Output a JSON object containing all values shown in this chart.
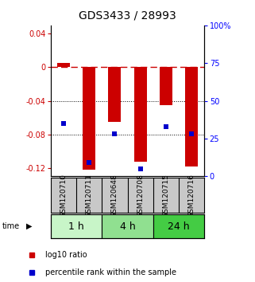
{
  "title": "GDS3433 / 28993",
  "samples": [
    "GSM120710",
    "GSM120711",
    "GSM120648",
    "GSM120708",
    "GSM120715",
    "GSM120716"
  ],
  "groups": [
    {
      "label": "1 h",
      "indices": [
        0,
        1
      ],
      "color": "#c8f5c8"
    },
    {
      "label": "4 h",
      "indices": [
        2,
        3
      ],
      "color": "#90e090"
    },
    {
      "label": "24 h",
      "indices": [
        4,
        5
      ],
      "color": "#44cc44"
    }
  ],
  "log10_ratio": [
    0.005,
    -0.122,
    -0.065,
    -0.113,
    -0.045,
    -0.118
  ],
  "percentile_rank_pct": [
    35,
    9,
    28,
    5,
    33,
    28
  ],
  "ylim_left": [
    -0.13,
    0.05
  ],
  "ylim_right": [
    0,
    100
  ],
  "yticks_left": [
    -0.12,
    -0.08,
    -0.04,
    0,
    0.04
  ],
  "yticks_right": [
    0,
    25,
    50,
    75,
    100
  ],
  "dotted_lines": [
    -0.04,
    -0.08
  ],
  "bar_color": "#cc0000",
  "dot_color": "#0000cc",
  "bar_width": 0.5,
  "dot_size": 25,
  "title_fontsize": 10,
  "tick_fontsize": 7,
  "label_fontsize": 7,
  "group_label_fontsize": 9,
  "sample_label_fontsize": 6.5,
  "sample_box_color": "#c8c8c8",
  "fig_width": 3.21,
  "fig_height": 3.54,
  "dpi": 100
}
